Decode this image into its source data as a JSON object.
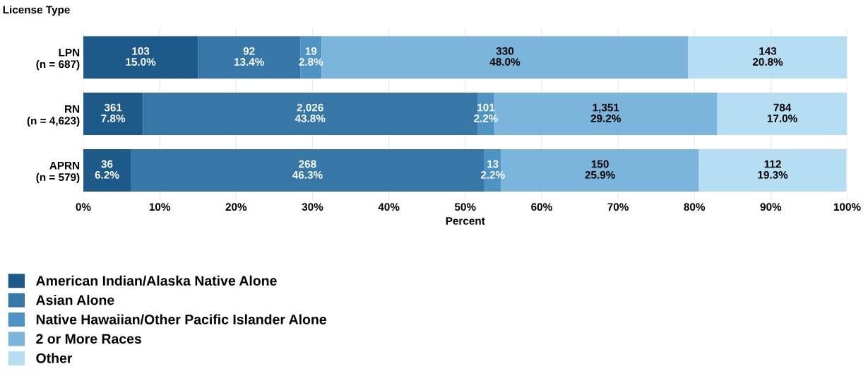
{
  "chart_data": {
    "type": "bar",
    "orientation": "horizontal",
    "stacked": true,
    "ylabel": "License Type",
    "xlabel": "Percent",
    "categories": [
      "LPN\n(n = 687)",
      "RN\n(n = 4,623)",
      "APRN\n(n = 579)"
    ],
    "series": [
      {
        "name": "American Indian/Alaska Native Alone",
        "color": "#1d5a8a",
        "values": [
          15.0,
          7.8,
          6.2
        ],
        "value_labels": [
          "103\n15.0%",
          "361\n7.8%",
          "36\n6.2%"
        ]
      },
      {
        "name": "Asian Alone",
        "color": "#3677a8",
        "values": [
          13.4,
          43.8,
          46.3
        ],
        "value_labels": [
          "92\n13.4%",
          "2,026\n43.8%",
          "268\n46.3%"
        ]
      },
      {
        "name": "Native Hawaiian/Other Pacific Islander Alone",
        "color": "#4f93c4",
        "values": [
          2.8,
          2.2,
          2.2
        ],
        "value_labels": [
          "19\n2.8%",
          "101\n2.2%",
          "13\n2.2%"
        ]
      },
      {
        "name": "2 or More Races",
        "color": "#7bb5dc",
        "values": [
          48.0,
          29.2,
          25.9
        ],
        "value_labels": [
          "330\n48.0%",
          "1,351\n29.2%",
          "150\n25.9%"
        ]
      },
      {
        "name": "Other",
        "color": "#b6def3",
        "values": [
          20.8,
          17.0,
          19.3
        ],
        "value_labels": [
          "143\n20.8%",
          "784\n17.0%",
          "112\n19.3%"
        ]
      }
    ],
    "xlim": [
      0,
      100
    ],
    "xticks": [
      {
        "value": 0,
        "label": "0%"
      },
      {
        "value": 10,
        "label": "10%"
      },
      {
        "value": 20,
        "label": "20%"
      },
      {
        "value": 30,
        "label": "30%"
      },
      {
        "value": 40,
        "label": "40%"
      },
      {
        "value": 50,
        "label": "50%"
      },
      {
        "value": 60,
        "label": "60%"
      },
      {
        "value": 70,
        "label": "70%"
      },
      {
        "value": 80,
        "label": "80%"
      },
      {
        "value": 90,
        "label": "90%"
      },
      {
        "value": 100,
        "label": "100%"
      }
    ],
    "grid": "x",
    "legend": "bottom left"
  }
}
